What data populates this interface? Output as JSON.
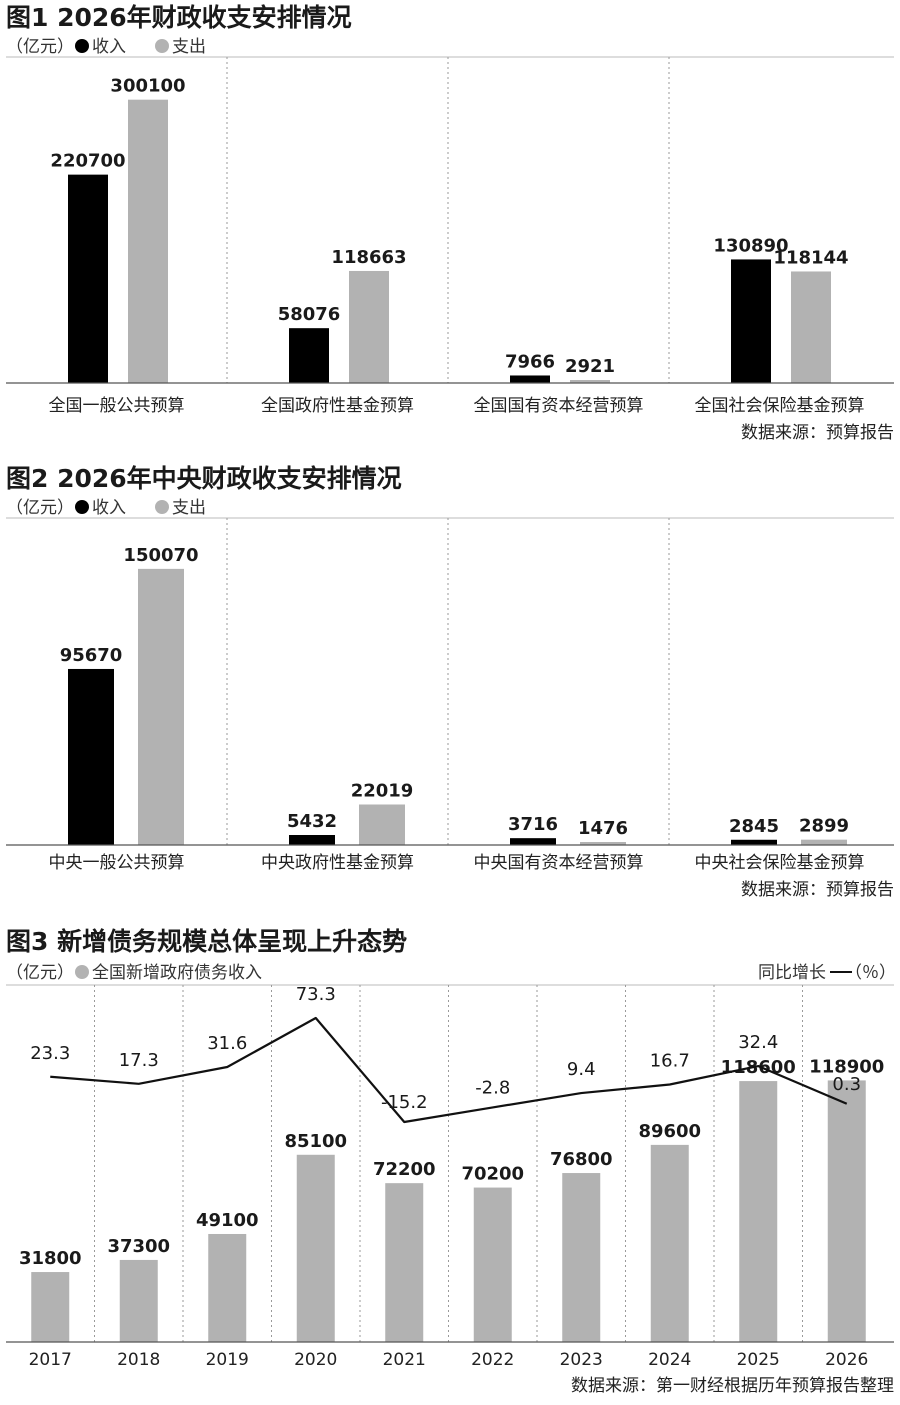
{
  "chart_data": [
    {
      "type": "bar",
      "title": "图1 2026年财政收支安排情况",
      "unit": "（亿元）",
      "categories": [
        "全国一般公共预算",
        "全国政府性基金预算",
        "全国国有资本经营预算",
        "全国社会保险基金预算"
      ],
      "series": [
        {
          "name": "收入",
          "color": "#000000",
          "values": [
            220700,
            58076,
            7966,
            130890
          ]
        },
        {
          "name": "支出",
          "color": "#b2b2b2",
          "values": [
            300100,
            118663,
            2921,
            118144
          ]
        }
      ],
      "ylim": [
        0,
        340000
      ],
      "grid": "vertical-dotted",
      "legend": "top-left",
      "source": "数据来源：预算报告"
    },
    {
      "type": "bar",
      "title": "图2 2026年中央财政收支安排情况",
      "unit": "（亿元）",
      "categories": [
        "中央一般公共预算",
        "中央政府性基金预算",
        "中央国有资本经营预算",
        "中央社会保险基金预算"
      ],
      "series": [
        {
          "name": "收入",
          "color": "#000000",
          "values": [
            95670,
            5432,
            3716,
            2845
          ]
        },
        {
          "name": "支出",
          "color": "#b2b2b2",
          "values": [
            150070,
            22019,
            1476,
            2899
          ]
        }
      ],
      "ylim": [
        0,
        175000
      ],
      "grid": "vertical-dotted",
      "legend": "top-left",
      "source": "数据来源：预算报告"
    },
    {
      "type": "bar",
      "title": "图3 新增债务规模总体呈现上升态势",
      "unit": "（亿元）",
      "right_axis_label": "同比增长",
      "right_unit": "（％）",
      "categories": [
        "2017",
        "2018",
        "2019",
        "2020",
        "2021",
        "2022",
        "2023",
        "2024",
        "2025",
        "2026"
      ],
      "series": [
        {
          "name": "全国新增政府债务收入",
          "color": "#b2b2b2",
          "values": [
            31800,
            37300,
            49100,
            85100,
            72200,
            70200,
            76800,
            89600,
            118600,
            118900
          ]
        }
      ],
      "line": {
        "color": "#111111",
        "values": [
          23.3,
          17.3,
          31.6,
          73.3,
          -15.2,
          -2.8,
          9.4,
          16.7,
          32.4,
          0.3
        ]
      },
      "ylim": [
        0,
        160000
      ],
      "grid": "vertical-dotted",
      "legend": "top-left",
      "source": "数据来源：第一财经根据历年预算报告整理"
    }
  ]
}
